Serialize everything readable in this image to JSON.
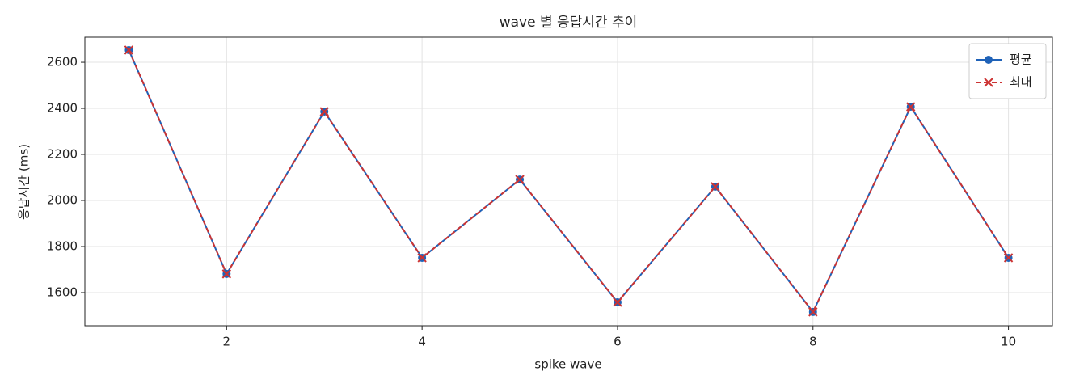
{
  "chart_data": {
    "type": "line",
    "title": "wave 별 응답시간 추이",
    "x_label": "spike wave",
    "y_label": "응답시간 (ms)",
    "x": [
      1,
      2,
      3,
      4,
      5,
      6,
      7,
      8,
      9,
      10
    ],
    "series": [
      {
        "name": "평균",
        "color": "#1f62b8",
        "marker": "o",
        "linestyle": "-",
        "values": [
          2653,
          1681,
          2386,
          1751,
          2091,
          1558,
          2060,
          1516,
          2407,
          1751
        ]
      },
      {
        "name": "최대",
        "color": "#cc3333",
        "marker": "x",
        "linestyle": "--",
        "values": [
          2653,
          1681,
          2386,
          1751,
          2091,
          1558,
          2060,
          1516,
          2407,
          1751
        ]
      }
    ],
    "xlim": [
      0.55,
      10.45
    ],
    "xticks": [
      2,
      4,
      6,
      8,
      10
    ],
    "ylim": [
      1456,
      2709
    ],
    "yticks": [
      1600,
      1800,
      2000,
      2200,
      2400,
      2600
    ],
    "grid": true,
    "legend": "upper right"
  }
}
